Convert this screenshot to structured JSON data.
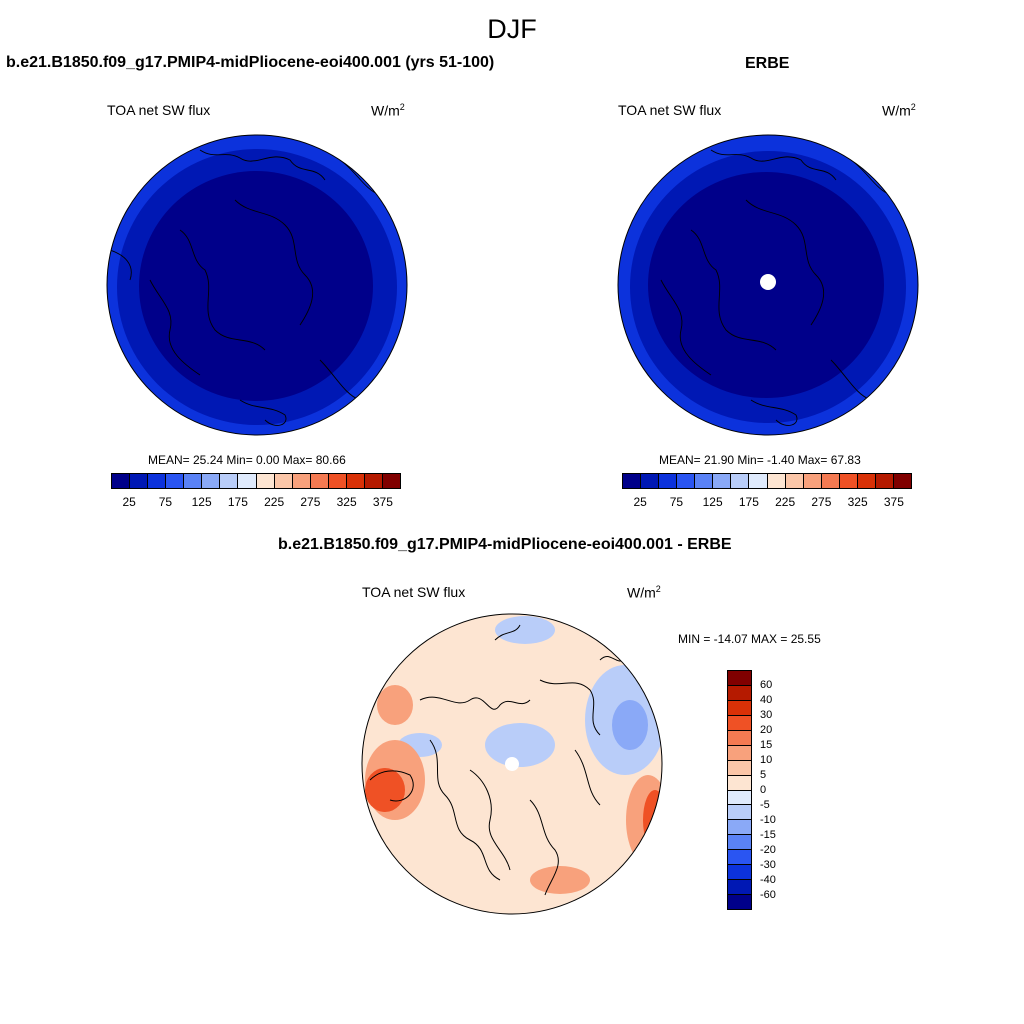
{
  "header": {
    "season": "DJF",
    "model_title": "b.e21.B1850.f09_g17.PMIP4-midPliocene-eoi400.001 (yrs 51-100)",
    "obs_title": "ERBE",
    "diff_title": "b.e21.B1850.f09_g17.PMIP4-midPliocene-eoi400.001 - ERBE"
  },
  "panels": {
    "model": {
      "variable": "TOA net SW flux",
      "units": "W/m",
      "units_sup": "2",
      "stats": "MEAN=  25.24  Min=   0.00  Max=  80.66"
    },
    "obs": {
      "variable": "TOA net SW flux",
      "units": "W/m",
      "units_sup": "2",
      "stats": "MEAN=  21.90  Min=  -1.40  Max=  67.83"
    },
    "diff": {
      "variable": "TOA net SW flux",
      "units": "W/m",
      "units_sup": "2",
      "stats": "MIN = -14.07 MAX =  25.55"
    }
  },
  "colorbar_abs": {
    "colors": [
      "#00008a",
      "#0018b4",
      "#0c32dc",
      "#2a55f2",
      "#5a82f6",
      "#8aa9f7",
      "#b9cdf9",
      "#dfeafc",
      "#fde5d2",
      "#fbc6a8",
      "#f8a17c",
      "#f47a52",
      "#ef5125",
      "#d93107",
      "#b51a00",
      "#800000"
    ],
    "ticks": [
      "25",
      "75",
      "125",
      "175",
      "225",
      "275",
      "325",
      "375"
    ]
  },
  "colorbar_diff": {
    "colors": [
      "#800000",
      "#b51a00",
      "#d93107",
      "#ef5125",
      "#f47a52",
      "#f8a17c",
      "#fbc6a8",
      "#fde5d2",
      "#dfeafc",
      "#b9cdf9",
      "#8aa9f7",
      "#5a82f6",
      "#2a55f2",
      "#0c32dc",
      "#0018b4",
      "#00008a"
    ],
    "ticks": [
      "60",
      "40",
      "30",
      "20",
      "15",
      "10",
      "5",
      "0",
      "-5",
      "-10",
      "-15",
      "-20",
      "-30",
      "-40",
      "-60"
    ]
  },
  "map_colors": {
    "outer_ring": "#0c32dc",
    "mid_ring": "#0018b4",
    "inner": "#00008a",
    "diff_base": "#fde5d2",
    "diff_warm": "#f8a17c",
    "diff_hot": "#ef5125",
    "diff_cool": "#b9cdf9",
    "diff_cold": "#8aa9f7",
    "coast": "#000000"
  }
}
